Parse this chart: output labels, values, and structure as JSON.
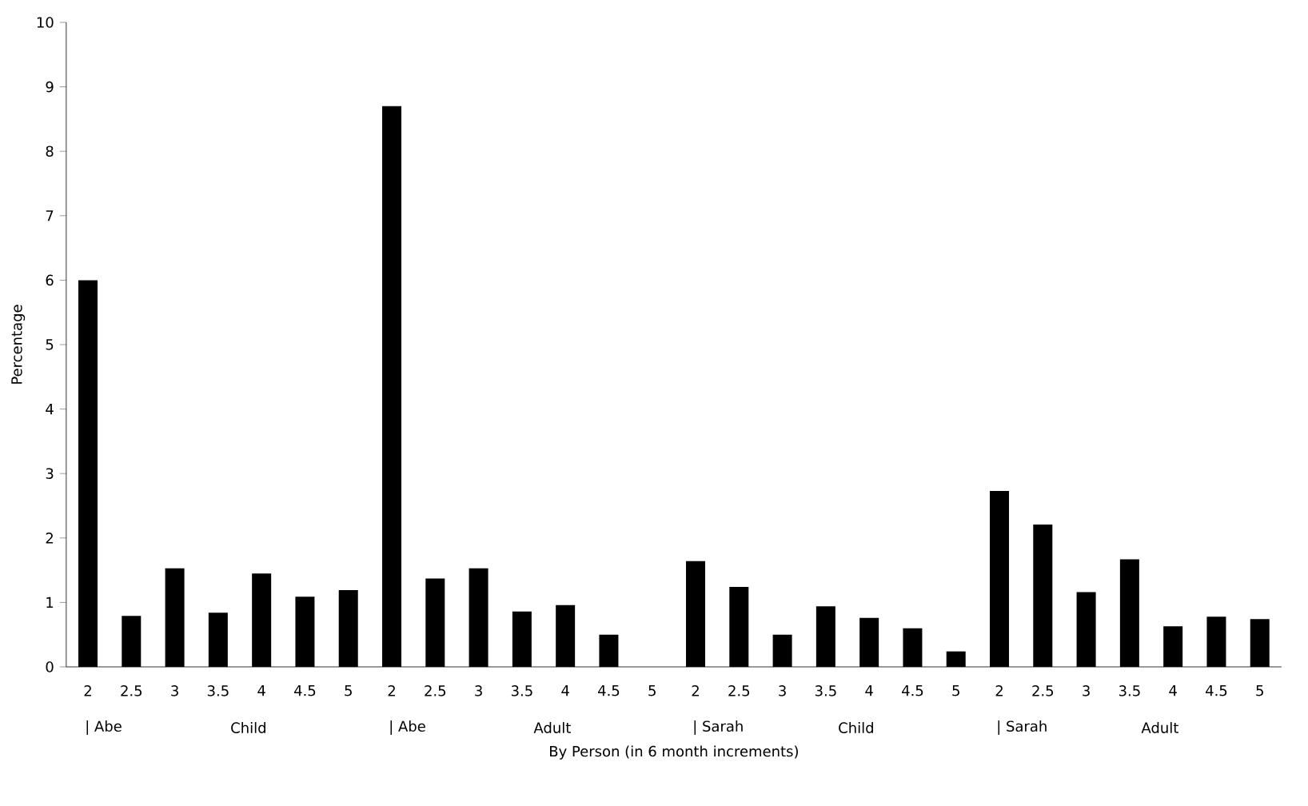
{
  "chart_data": {
    "type": "bar",
    "xlabel": "By Person (in 6 month increments)",
    "ylabel": "Percentage",
    "categories": [
      "2",
      "2.5",
      "3",
      "3.5",
      "4",
      "4.5",
      "5",
      "2",
      "2.5",
      "3",
      "3.5",
      "4",
      "4.5",
      "5",
      "2",
      "2.5",
      "3",
      "3.5",
      "4",
      "4.5",
      "5",
      "2",
      "2.5",
      "3",
      "3.5",
      "4",
      "4.5",
      "5"
    ],
    "values": [
      6.0,
      0.79,
      1.53,
      0.84,
      1.45,
      1.09,
      1.19,
      8.7,
      1.37,
      1.53,
      0.86,
      0.96,
      0.5,
      0,
      1.64,
      1.24,
      0.5,
      0.94,
      0.76,
      0.6,
      0.24,
      2.73,
      2.21,
      1.16,
      1.67,
      0.63,
      0.78,
      0.74
    ],
    "color": "#000000",
    "ylim": [
      0,
      10
    ],
    "yticks": [
      0,
      1,
      2,
      3,
      4,
      5,
      6,
      7,
      8,
      9,
      10
    ],
    "grid": false,
    "annotations": [
      "| Abe",
      "Child",
      "| Abe",
      "Adult",
      "| Sarah",
      "Child",
      "| Sarah",
      "Adult"
    ]
  }
}
